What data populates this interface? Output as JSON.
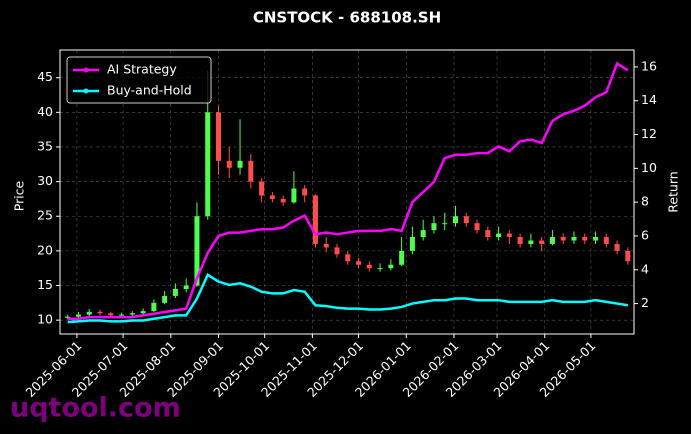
{
  "chart_data": {
    "type": "candlestick",
    "title": "CNSTOCK - 688108.SH",
    "ylabel": "Price",
    "y2label": "Return",
    "watermark": "uqtool.com",
    "grid": true,
    "legend": "upper left",
    "up_color": "#4cff4c",
    "down_color": "#ff4c4c",
    "x": [
      "2025-05-26",
      "2025-06-02",
      "2025-06-09",
      "2025-06-16",
      "2025-06-23",
      "2025-06-30",
      "2025-07-07",
      "2025-07-14",
      "2025-07-21",
      "2025-07-28",
      "2025-08-04",
      "2025-08-11",
      "2025-08-18",
      "2025-08-25",
      "2025-09-01",
      "2025-09-08",
      "2025-09-15",
      "2025-09-22",
      "2025-09-29",
      "2025-10-06",
      "2025-10-13",
      "2025-10-20",
      "2025-10-27",
      "2025-11-03",
      "2025-11-10",
      "2025-11-17",
      "2025-11-24",
      "2025-12-01",
      "2025-12-08",
      "2025-12-15",
      "2025-12-22",
      "2025-12-29",
      "2026-01-05",
      "2026-01-12",
      "2026-01-19",
      "2026-01-26",
      "2026-02-02",
      "2026-02-09",
      "2026-02-16",
      "2026-02-23",
      "2026-03-02",
      "2026-03-09",
      "2026-03-16",
      "2026-03-23",
      "2026-03-30",
      "2026-04-06",
      "2026-04-13",
      "2026-04-20",
      "2026-04-27",
      "2026-05-04",
      "2026-05-11",
      "2026-05-18",
      "2026-05-25"
    ],
    "ohlc": {
      "open": [
        10.3,
        10.5,
        10.8,
        11.2,
        11.0,
        10.7,
        10.8,
        11.0,
        11.3,
        12.5,
        13.5,
        14.5,
        15.0,
        25.0,
        40.0,
        33.0,
        32.0,
        33.0,
        30.0,
        28.0,
        27.5,
        27.0,
        29.0,
        28.0,
        21.0,
        20.5,
        19.5,
        18.5,
        18.0,
        17.5,
        17.5,
        18.0,
        20.0,
        22.0,
        23.0,
        24.0,
        24.0,
        25.0,
        24.0,
        23.0,
        22.0,
        22.5,
        22.0,
        21.0,
        21.5,
        21.0,
        22.0,
        21.5,
        22.0,
        21.5,
        22.0,
        21.0,
        20.0
      ],
      "high": [
        10.8,
        11.2,
        11.6,
        11.5,
        11.2,
        11.1,
        11.3,
        11.7,
        13.0,
        14.2,
        15.3,
        16.0,
        27.0,
        46.0,
        41.0,
        35.0,
        39.0,
        34.0,
        30.5,
        28.5,
        28.0,
        31.5,
        29.5,
        28.2,
        22.0,
        21.0,
        20.0,
        19.0,
        18.5,
        18.2,
        18.8,
        22.0,
        23.5,
        24.5,
        25.0,
        25.5,
        26.5,
        25.5,
        24.5,
        23.5,
        23.5,
        23.0,
        22.5,
        22.5,
        22.0,
        23.0,
        22.5,
        22.8,
        22.5,
        22.8,
        22.5,
        21.5,
        20.5
      ],
      "low": [
        10.1,
        10.3,
        10.6,
        10.7,
        10.4,
        10.5,
        10.6,
        10.8,
        11.2,
        12.3,
        13.2,
        14.0,
        14.8,
        24.5,
        31.0,
        30.5,
        31.0,
        29.0,
        27.0,
        27.0,
        26.5,
        26.8,
        27.0,
        20.5,
        19.8,
        19.0,
        18.0,
        17.5,
        17.0,
        17.0,
        17.2,
        17.8,
        19.5,
        21.5,
        22.5,
        23.0,
        23.5,
        23.5,
        22.5,
        21.5,
        21.5,
        21.0,
        20.5,
        20.5,
        20.0,
        20.8,
        21.0,
        21.0,
        21.0,
        21.0,
        20.5,
        19.5,
        18.0
      ],
      "close": [
        10.5,
        10.8,
        11.2,
        11.0,
        10.7,
        10.8,
        11.0,
        11.3,
        12.5,
        13.5,
        14.5,
        15.0,
        25.0,
        40.0,
        33.0,
        32.0,
        33.0,
        30.0,
        28.0,
        27.5,
        27.0,
        29.0,
        28.0,
        21.0,
        20.5,
        19.5,
        18.5,
        18.0,
        17.5,
        17.5,
        18.0,
        20.0,
        22.0,
        23.0,
        24.0,
        24.0,
        25.0,
        24.0,
        23.0,
        22.0,
        22.5,
        22.0,
        21.0,
        21.5,
        21.0,
        22.0,
        21.5,
        22.0,
        21.5,
        22.0,
        21.0,
        20.0,
        18.5
      ]
    },
    "series": [
      {
        "name": "AI Strategy",
        "color": "#ff00ff",
        "axis": "y2",
        "values": [
          1.1,
          1.1,
          1.2,
          1.2,
          1.2,
          1.2,
          1.2,
          1.3,
          1.4,
          1.5,
          1.6,
          1.7,
          3.5,
          5.0,
          6.0,
          6.2,
          6.2,
          6.3,
          6.4,
          6.4,
          6.5,
          6.9,
          7.2,
          6.1,
          6.2,
          6.1,
          6.2,
          6.3,
          6.3,
          6.3,
          6.4,
          6.3,
          8.0,
          8.6,
          9.2,
          10.6,
          10.8,
          10.8,
          10.9,
          10.9,
          11.3,
          11.0,
          11.6,
          11.7,
          11.5,
          12.8,
          13.2,
          13.4,
          13.7,
          14.2,
          14.5,
          16.2,
          15.8
        ]
      },
      {
        "name": "Buy-and-Hold",
        "color": "#00ffff",
        "axis": "y2",
        "values": [
          0.9,
          0.95,
          1.0,
          1.0,
          0.95,
          0.95,
          1.0,
          1.0,
          1.1,
          1.2,
          1.3,
          1.3,
          2.3,
          3.7,
          3.3,
          3.1,
          3.2,
          3.0,
          2.7,
          2.6,
          2.6,
          2.8,
          2.7,
          1.9,
          1.85,
          1.75,
          1.7,
          1.7,
          1.65,
          1.65,
          1.7,
          1.8,
          2.0,
          2.1,
          2.2,
          2.2,
          2.3,
          2.3,
          2.2,
          2.2,
          2.2,
          2.1,
          2.1,
          2.1,
          2.1,
          2.2,
          2.1,
          2.1,
          2.1,
          2.2,
          2.1,
          2.0,
          1.9
        ]
      }
    ],
    "xlim": [
      "2025-05-21",
      "2026-05-29"
    ],
    "xticks": [
      "2025-06-01",
      "2025-07-01",
      "2025-08-01",
      "2025-09-01",
      "2025-10-01",
      "2025-11-01",
      "2025-12-01",
      "2026-01-01",
      "2026-02-01",
      "2026-03-01",
      "2026-04-01",
      "2026-05-01"
    ],
    "ylim": [
      8,
      49
    ],
    "yticks": [
      10,
      15,
      20,
      25,
      30,
      35,
      40,
      45
    ],
    "y2lim": [
      0.2,
      17
    ],
    "y2ticks": [
      2,
      4,
      6,
      8,
      10,
      12,
      14,
      16
    ]
  }
}
